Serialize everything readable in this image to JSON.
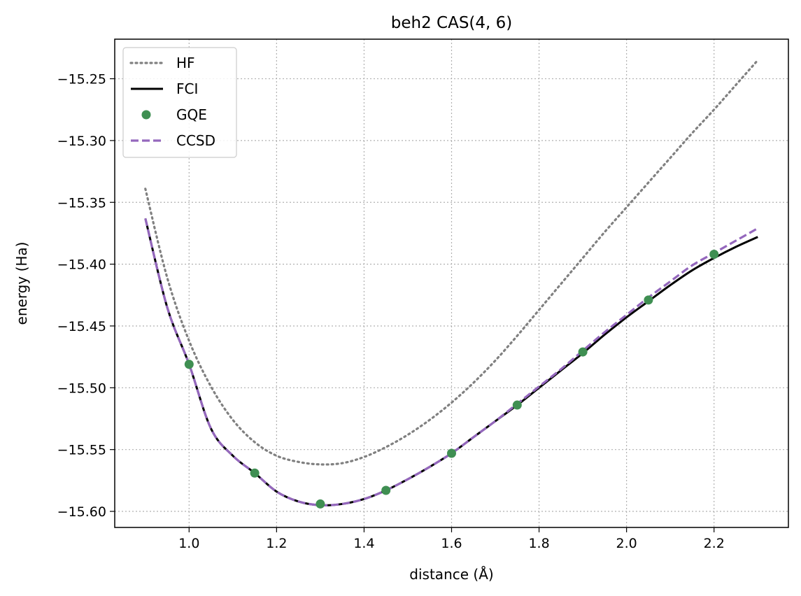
{
  "chart_data": {
    "type": "line",
    "title": "beh2 CAS(4, 6)",
    "xlabel": "distance (Å)",
    "ylabel": "energy (Ha)",
    "xlim": [
      0.83,
      2.37
    ],
    "ylim": [
      -15.613,
      -15.218
    ],
    "xticks": [
      1.0,
      1.2,
      1.4,
      1.6,
      1.8,
      2.0,
      2.2
    ],
    "xtick_labels": [
      "1.0",
      "1.2",
      "1.4",
      "1.6",
      "1.8",
      "2.0",
      "2.2"
    ],
    "yticks": [
      -15.25,
      -15.3,
      -15.35,
      -15.4,
      -15.45,
      -15.5,
      -15.55,
      -15.6
    ],
    "ytick_labels": [
      "−15.25",
      "−15.30",
      "−15.35",
      "−15.40",
      "−15.45",
      "−15.50",
      "−15.55",
      "−15.60"
    ],
    "grid": true,
    "legend_position": "top-left",
    "series": [
      {
        "name": "HF",
        "style": "dotted",
        "color": "#808080",
        "x": [
          0.9,
          0.95,
          1.0,
          1.05,
          1.1,
          1.15,
          1.2,
          1.25,
          1.3,
          1.35,
          1.4,
          1.45,
          1.5,
          1.55,
          1.6,
          1.65,
          1.7,
          1.75,
          1.8,
          1.85,
          1.9,
          1.95,
          2.0,
          2.05,
          2.1,
          2.15,
          2.2,
          2.25,
          2.3
        ],
        "y": [
          -15.339,
          -15.411,
          -15.462,
          -15.499,
          -15.526,
          -15.544,
          -15.555,
          -15.56,
          -15.562,
          -15.561,
          -15.556,
          -15.548,
          -15.538,
          -15.526,
          -15.512,
          -15.496,
          -15.478,
          -15.458,
          -15.437,
          -15.416,
          -15.395,
          -15.374,
          -15.354,
          -15.334,
          -15.314,
          -15.294,
          -15.275,
          -15.255,
          -15.235
        ]
      },
      {
        "name": "FCI",
        "style": "solid",
        "color": "#000000",
        "x": [
          0.9,
          0.95,
          1.0,
          1.05,
          1.1,
          1.15,
          1.2,
          1.25,
          1.3,
          1.35,
          1.4,
          1.45,
          1.5,
          1.55,
          1.6,
          1.65,
          1.7,
          1.75,
          1.8,
          1.85,
          1.9,
          1.95,
          2.0,
          2.05,
          2.1,
          2.15,
          2.2,
          2.25,
          2.3
        ],
        "y": [
          -15.363,
          -15.435,
          -15.481,
          -15.533,
          -15.555,
          -15.569,
          -15.584,
          -15.592,
          -15.595,
          -15.594,
          -15.59,
          -15.583,
          -15.574,
          -15.564,
          -15.553,
          -15.54,
          -15.527,
          -15.514,
          -15.5,
          -15.486,
          -15.472,
          -15.457,
          -15.443,
          -15.43,
          -15.417,
          -15.405,
          -15.395,
          -15.386,
          -15.378
        ]
      },
      {
        "name": "GQE",
        "style": "markers",
        "color": "#3f8f52",
        "x": [
          1.0,
          1.15,
          1.3,
          1.45,
          1.6,
          1.75,
          1.9,
          2.05,
          2.2
        ],
        "y": [
          -15.481,
          -15.569,
          -15.594,
          -15.583,
          -15.553,
          -15.514,
          -15.471,
          -15.429,
          -15.392
        ]
      },
      {
        "name": "CCSD",
        "style": "dashed",
        "color": "#9467bd",
        "x": [
          0.9,
          0.95,
          1.0,
          1.05,
          1.1,
          1.15,
          1.2,
          1.25,
          1.3,
          1.35,
          1.4,
          1.45,
          1.5,
          1.55,
          1.6,
          1.65,
          1.7,
          1.75,
          1.8,
          1.85,
          1.9,
          1.95,
          2.0,
          2.05,
          2.1,
          2.15,
          2.2,
          2.25,
          2.3
        ],
        "y": [
          -15.363,
          -15.435,
          -15.481,
          -15.533,
          -15.555,
          -15.569,
          -15.584,
          -15.592,
          -15.595,
          -15.594,
          -15.59,
          -15.583,
          -15.574,
          -15.564,
          -15.553,
          -15.54,
          -15.527,
          -15.513,
          -15.499,
          -15.485,
          -15.47,
          -15.455,
          -15.441,
          -15.427,
          -15.414,
          -15.401,
          -15.391,
          -15.381,
          -15.371
        ]
      }
    ]
  }
}
